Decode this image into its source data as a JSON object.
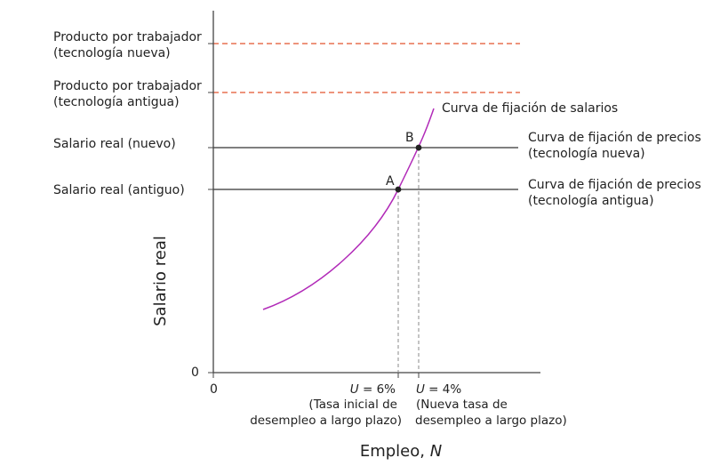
{
  "colors": {
    "axis": "#444444",
    "price_line": "#333333",
    "productivity_line": "#e2552f",
    "wage_curve": "#b12ab8",
    "guide_line": "#888888",
    "point": "#222222"
  },
  "axes": {
    "y_title": "Salario real",
    "x_title": "Empleo, ",
    "x_title_var": "N",
    "origin_x": "0",
    "origin_y": "0"
  },
  "left_labels": {
    "prod_new_1": "Producto por trabajador",
    "prod_new_2": "(tecnología nueva)",
    "prod_old_1": "Producto por trabajador",
    "prod_old_2": "(tecnología antigua)",
    "wage_new": "Salario real (nuevo)",
    "wage_old": "Salario real (antiguo)"
  },
  "right_labels": {
    "wage_curve": "Curva de fijación de salarios",
    "price_new_1": "Curva de fijación de precios",
    "price_new_2": "(tecnología nueva)",
    "price_old_1": "Curva de fijación de precios",
    "price_old_2": "(tecnología antigua)"
  },
  "points": {
    "a": "A",
    "b": "B"
  },
  "x_annotations": {
    "a_var": "U",
    "a_value": " = 6%",
    "a_line2": "(Tasa inicial de",
    "a_line3": "desempleo a largo plazo)",
    "b_var": "U",
    "b_value": " = 4%",
    "b_line2": "(Nueva tasa de",
    "b_line3": "desempleo a largo plazo)"
  }
}
